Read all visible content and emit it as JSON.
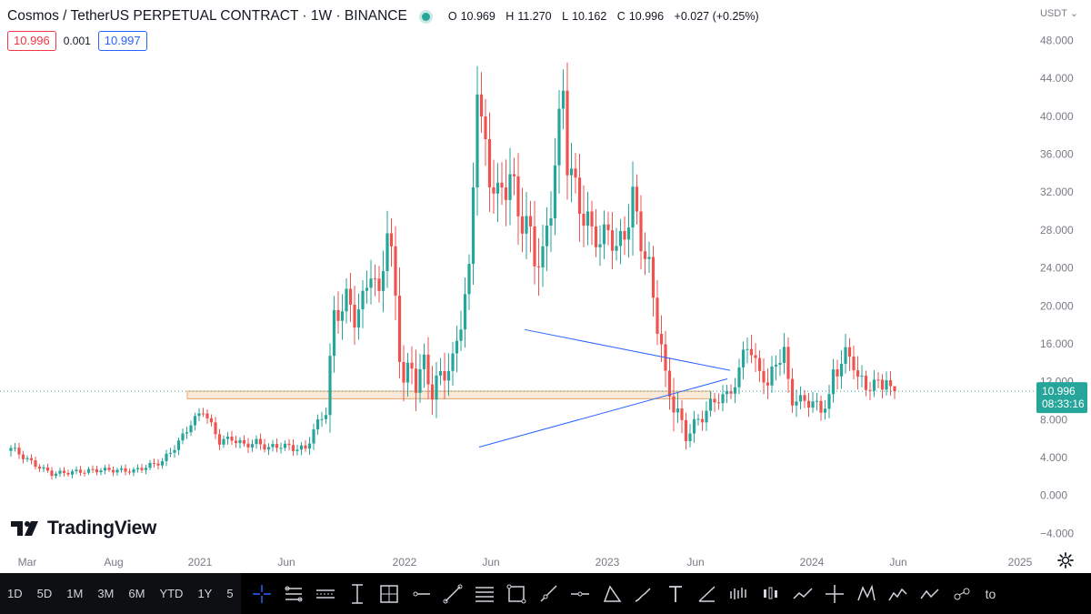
{
  "legend": {
    "title": "Cosmos / TetherUS PERPETUAL CONTRACT · 1W · BINANCE",
    "open_label": "O",
    "open": "10.969",
    "high_label": "H",
    "high": "11.270",
    "low_label": "L",
    "low": "10.162",
    "close_label": "C",
    "close": "10.996",
    "change": "+0.027 (+0.25%)"
  },
  "quote": {
    "sell": "10.996",
    "spread": "0.001",
    "buy": "10.997"
  },
  "currency": "USDT",
  "last_price": {
    "value": "10.996",
    "countdown": "08:33:16"
  },
  "logo_text": "TradingView",
  "toolbar": {
    "timeframes": [
      "1D",
      "5D",
      "1M",
      "3M",
      "6M",
      "YTD",
      "1Y",
      "5"
    ],
    "tail_label": "to",
    "tools": [
      "crosshair-icon",
      "parallel-channel-icon",
      "regression-trend-icon",
      "vertical-line-icon",
      "rectangle-frame-icon",
      "horizontal-ray-icon",
      "trend-line-icon",
      "fib-retracement-icon",
      "rectangle-icon",
      "ray-icon",
      "horizontal-line-icon",
      "triangle-icon",
      "brush-icon",
      "text-icon",
      "angle-icon",
      "bars-pattern-icon",
      "candles-pattern-icon",
      "path-icon",
      "cross-line-icon",
      "xabcd-pattern-icon",
      "elliott-impulse-icon",
      "elliott-correction-icon",
      "cyclic-lines-icon"
    ]
  },
  "colors": {
    "up": "#26a69a",
    "down": "#ef5350",
    "trend": "#2962ff",
    "zone_fill": "#fbe9d9",
    "zone_border": "#e8a870"
  },
  "chart_data": {
    "type": "candlestick",
    "x_ticks": [
      "Mar",
      "Aug",
      "2021",
      "Jun",
      "2022",
      "Jun",
      "2023",
      "Jun",
      "2024",
      "Jun",
      "2025"
    ],
    "y_ticks": [
      "48.000",
      "44.000",
      "40.000",
      "36.000",
      "32.000",
      "28.000",
      "24.000",
      "20.000",
      "16.000",
      "12.000",
      "8.000",
      "4.000",
      "0.000",
      "−4.000"
    ],
    "ylim": [
      -4,
      48
    ],
    "interval": "1W",
    "candle_anchors": [
      [
        0,
        5.0,
        0.6
      ],
      [
        6,
        3.2,
        0.4
      ],
      [
        10,
        2.3,
        0.4
      ],
      [
        22,
        2.7,
        0.4
      ],
      [
        30,
        2.6,
        0.4
      ],
      [
        37,
        3.6,
        0.5
      ],
      [
        41,
        5.6,
        0.6
      ],
      [
        44,
        7.6,
        0.6
      ],
      [
        47,
        9.0,
        0.6
      ],
      [
        51,
        5.7,
        0.6
      ],
      [
        54,
        6.0,
        0.6
      ],
      [
        57,
        5.3,
        0.6
      ],
      [
        60,
        5.6,
        0.6
      ],
      [
        63,
        5.0,
        0.6
      ],
      [
        66,
        5.3,
        0.6
      ],
      [
        69,
        5.0,
        0.6
      ],
      [
        72,
        4.9,
        0.6
      ],
      [
        74,
        6.9,
        0.8
      ],
      [
        77,
        8.9,
        0.8
      ],
      [
        78,
        14.0,
        2.0
      ],
      [
        79,
        18.7,
        2.0
      ],
      [
        82,
        20.7,
        2.0
      ],
      [
        84,
        18.9,
        2.0
      ],
      [
        86,
        20.4,
        2.0
      ],
      [
        88,
        24.0,
        2.0
      ],
      [
        90,
        20.6,
        2.0
      ],
      [
        92,
        28.6,
        2.5
      ],
      [
        93,
        25.0,
        2.5
      ],
      [
        95,
        15.8,
        3.0
      ],
      [
        96,
        12.1,
        2.0
      ],
      [
        98,
        13.5,
        2.0
      ],
      [
        99,
        12.0,
        2.0
      ],
      [
        101,
        13.8,
        2.0
      ],
      [
        103,
        11.0,
        2.0
      ],
      [
        106,
        13.2,
        2.0
      ],
      [
        108,
        13.8,
        2.0
      ],
      [
        110,
        18.7,
        2.0
      ],
      [
        112,
        23.3,
        2.0
      ],
      [
        113,
        33.3,
        3.0
      ],
      [
        114,
        43.8,
        3.0
      ],
      [
        115,
        38.8,
        3.0
      ],
      [
        117,
        34.0,
        3.0
      ],
      [
        119,
        31.3,
        3.0
      ],
      [
        122,
        33.8,
        3.0
      ],
      [
        124,
        30.0,
        3.0
      ],
      [
        126,
        28.5,
        3.0
      ],
      [
        128,
        25.5,
        3.0
      ],
      [
        130,
        24.7,
        3.0
      ],
      [
        132,
        31.0,
        3.0
      ],
      [
        133,
        35.0,
        3.0
      ],
      [
        135,
        43.0,
        3.0
      ],
      [
        136,
        35.5,
        3.0
      ],
      [
        138,
        32.0,
        3.0
      ],
      [
        140,
        29.7,
        3.0
      ],
      [
        142,
        27.8,
        2.0
      ],
      [
        144,
        26.8,
        2.0
      ],
      [
        146,
        28.0,
        2.0
      ],
      [
        148,
        26.0,
        2.0
      ],
      [
        150,
        27.6,
        2.0
      ],
      [
        152,
        31.3,
        3.0
      ],
      [
        154,
        26.8,
        2.0
      ],
      [
        156,
        24.0,
        2.0
      ],
      [
        157,
        20.7,
        2.0
      ],
      [
        159,
        15.8,
        2.0
      ],
      [
        160,
        12.0,
        2.0
      ],
      [
        162,
        9.8,
        2.0
      ],
      [
        164,
        7.3,
        1.5
      ],
      [
        165,
        6.2,
        1.0
      ],
      [
        167,
        7.5,
        1.0
      ],
      [
        169,
        8.3,
        1.0
      ],
      [
        171,
        9.6,
        1.0
      ],
      [
        173,
        10.3,
        1.0
      ],
      [
        175,
        10.5,
        1.0
      ],
      [
        177,
        11.8,
        1.0
      ],
      [
        178,
        13.0,
        1.0
      ],
      [
        179,
        15.0,
        1.5
      ],
      [
        180,
        16.3,
        1.5
      ],
      [
        182,
        13.6,
        1.5
      ],
      [
        184,
        12.8,
        1.5
      ],
      [
        185,
        11.3,
        1.5
      ],
      [
        187,
        14.3,
        1.5
      ],
      [
        189,
        15.0,
        1.5
      ],
      [
        190,
        11.8,
        1.5
      ],
      [
        191,
        10.3,
        1.5
      ],
      [
        193,
        10.0,
        1.0
      ],
      [
        196,
        9.8,
        1.0
      ],
      [
        198,
        9.0,
        1.0
      ],
      [
        200,
        10.3,
        1.0
      ],
      [
        201,
        12.7,
        1.5
      ],
      [
        202,
        13.3,
        1.5
      ],
      [
        203,
        14.3,
        1.5
      ],
      [
        204,
        14.8,
        1.5
      ],
      [
        206,
        14.1,
        1.5
      ],
      [
        207,
        12.5,
        1.5
      ],
      [
        209,
        11.3,
        1.0
      ],
      [
        211,
        11.9,
        1.0
      ],
      [
        213,
        11.6,
        1.0
      ],
      [
        214,
        12.5,
        1.0
      ],
      [
        215,
        11.0,
        1.0
      ],
      [
        216,
        11.2,
        1.0
      ]
    ],
    "last_bar": {
      "open": 10.969,
      "high": 11.27,
      "low": 10.162,
      "close": 10.996
    },
    "drawings": {
      "support_zone": {
        "y_low": 10.2,
        "y_high": 11.0
      },
      "triangle_upper": {
        "from": [
          180,
          17.5
        ],
        "to": [
          225,
          13.2
        ]
      },
      "triangle_lower": {
        "from": [
          163,
          5.1
        ],
        "to": [
          225,
          12.3
        ]
      }
    }
  }
}
